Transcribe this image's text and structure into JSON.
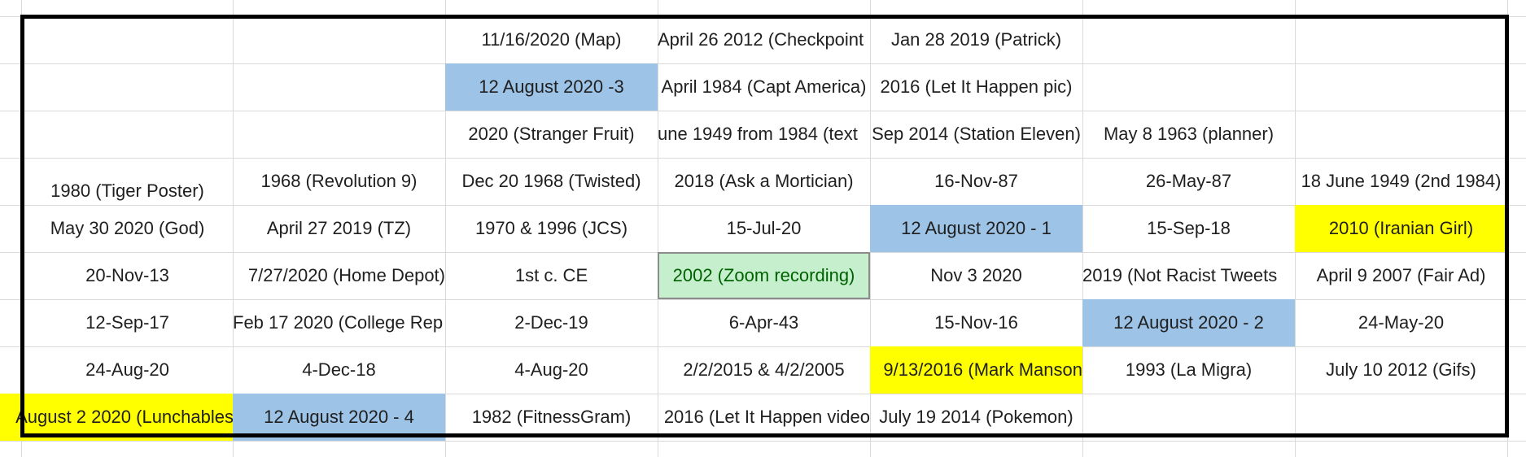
{
  "rows": [
    [
      "",
      "",
      "11/16/2020 (Map)",
      "April 26 2012 (Checkpoint",
      "Jan 28 2019 (Patrick)",
      "",
      ""
    ],
    [
      "",
      "",
      "12 August 2020 -3",
      "April 1984 (Capt America)",
      "2016 (Let It Happen pic)",
      "",
      ""
    ],
    [
      "",
      "",
      "2020 (Stranger Fruit)",
      "une 1949 from 1984 (text",
      "Sep 2014 (Station Eleven)",
      "May 8 1963 (planner)",
      ""
    ],
    [
      "1980 (Tiger Poster)",
      "1968 (Revolution 9)",
      "Dec 20 1968 (Twisted)",
      "2018 (Ask a Mortician)",
      "16-Nov-87",
      "26-May-87",
      "18 June 1949 (2nd 1984)"
    ],
    [
      "May 30 2020 (God)",
      "April 27 2019 (TZ)",
      "1970 & 1996 (JCS)",
      "15-Jul-20",
      "12 August 2020 - 1",
      "15-Sep-18",
      "2010 (Iranian Girl)"
    ],
    [
      "20-Nov-13",
      "7/27/2020 (Home Depot)",
      "1st c. CE",
      "2002 (Zoom recording)",
      "Nov 3 2020",
      "2019 (Not Racist Tweets",
      "April 9 2007 (Fair Ad)"
    ],
    [
      "12-Sep-17",
      "Feb 17 2020 (College Rep",
      "2-Dec-19",
      "6-Apr-43",
      "15-Nov-16",
      "12 August 2020 - 2",
      "24-May-20"
    ],
    [
      "24-Aug-20",
      "4-Dec-18",
      "4-Aug-20",
      "2/2/2015 & 4/2/2005",
      "9/13/2016 (Mark Manson",
      "1993 (La Migra)",
      "July 10 2012 (Gifs)"
    ],
    [
      "August 2 2020 (Lunchables",
      "12 August 2020 - 4",
      "1982 (FitnessGram)",
      "2016 (Let It Happen video",
      "July 19 2014 (Pokemon)",
      "",
      ""
    ]
  ],
  "colors": {
    "blue_fill": "#9dc3e6",
    "yellow_fill": "#ffff00",
    "green_fill": "#c6efce",
    "green_text": "#006100",
    "border": "#000000"
  }
}
